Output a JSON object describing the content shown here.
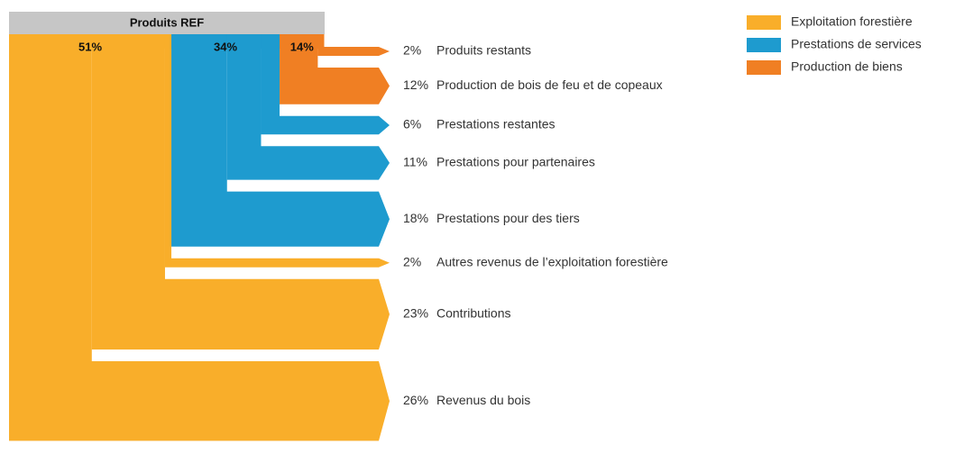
{
  "chart_data": {
    "type": "sankey",
    "title": "Produits REF",
    "series": [
      {
        "name": "Exploitation forestière",
        "color": "#f9ae2a",
        "value": 51,
        "value_label": "51%",
        "flows": [
          {
            "label": "Autres revenus de l’exploitation forestière",
            "value": 2,
            "value_label": "2%"
          },
          {
            "label": "Contributions",
            "value": 23,
            "value_label": "23%"
          },
          {
            "label": "Revenus du bois",
            "value": 26,
            "value_label": "26%"
          }
        ]
      },
      {
        "name": "Prestations de services",
        "color": "#1e9bcf",
        "value": 34,
        "value_label": "34%",
        "flows": [
          {
            "label": "Prestations restantes",
            "value": 6,
            "value_label": "6%"
          },
          {
            "label": "Prestations pour partenaires",
            "value": 11,
            "value_label": "11%"
          },
          {
            "label": "Prestations pour des tiers",
            "value": 18,
            "value_label": "18%"
          }
        ]
      },
      {
        "name": "Production de biens",
        "color": "#f07f23",
        "value": 14,
        "value_label": "14%",
        "flows": [
          {
            "label": "Produits restants",
            "value": 2,
            "value_label": "2%"
          },
          {
            "label": "Production de bois de feu et de copeaux",
            "value": 12,
            "value_label": "12%"
          }
        ]
      }
    ]
  }
}
